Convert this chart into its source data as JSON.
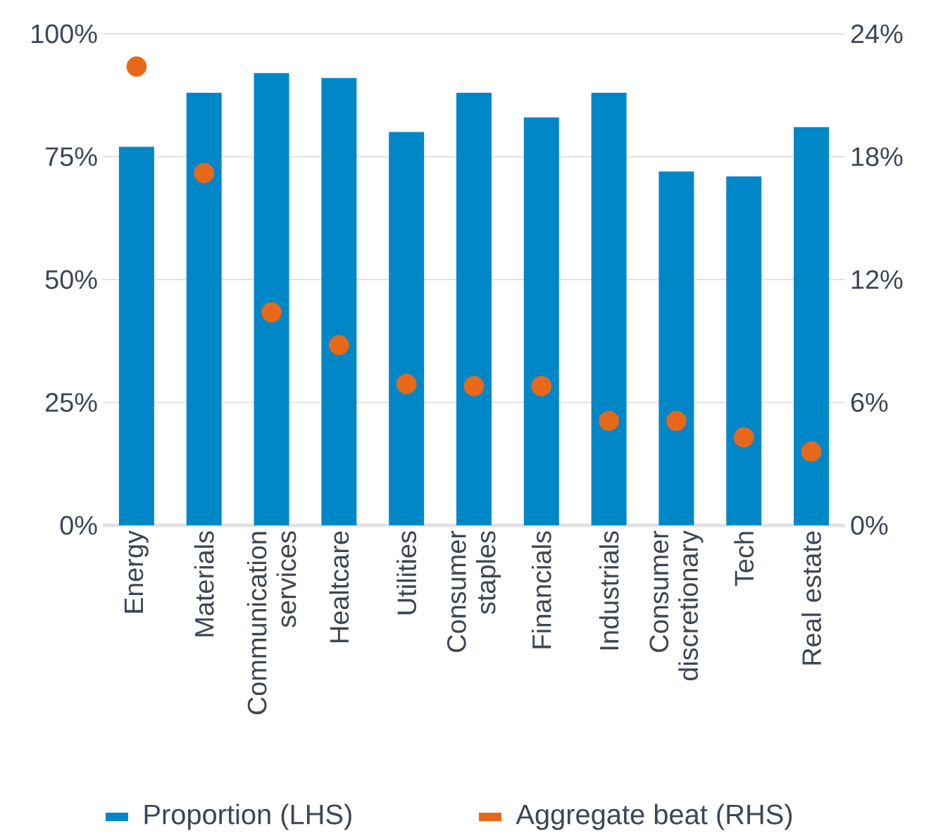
{
  "chart_data": {
    "type": "bar",
    "categories": [
      "Energy",
      "Materials",
      "Communication services",
      "Healtcare",
      "Utilities",
      "Consumer staples",
      "Financials",
      "Industrials",
      "Consumer discretionary",
      "Tech",
      "Real estate"
    ],
    "series": [
      {
        "name": "Proportion (LHS)",
        "color": "#0087c8",
        "values": [
          77,
          88,
          92,
          91,
          80,
          88,
          83,
          88,
          72,
          71,
          81
        ]
      },
      {
        "name": "Aggregate beat (RHS)",
        "type": "scatter",
        "axis": "y2",
        "color": "#e8681a",
        "values": [
          22.4,
          17.2,
          10.4,
          8.8,
          6.9,
          6.8,
          6.8,
          5.1,
          5.1,
          4.3,
          3.6
        ]
      }
    ],
    "ylim": [
      0,
      100
    ],
    "yticks": [
      {
        "value": 0,
        "label": "0%"
      },
      {
        "value": 25,
        "label": "25%"
      },
      {
        "value": 50,
        "label": "50%"
      },
      {
        "value": 75,
        "label": "75%"
      },
      {
        "value": 100,
        "label": "100%"
      }
    ],
    "y2lim": [
      0,
      24
    ],
    "y2ticks": [
      {
        "value": 0,
        "label": "0%"
      },
      {
        "value": 6,
        "label": "6%"
      },
      {
        "value": 12,
        "label": "12%"
      },
      {
        "value": 18,
        "label": "18%"
      },
      {
        "value": 24,
        "label": "24%"
      }
    ],
    "grid": "y",
    "legend": "bottom",
    "marker": "circle"
  }
}
